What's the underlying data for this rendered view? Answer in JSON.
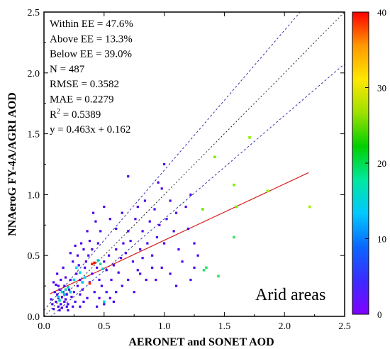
{
  "chart_data": {
    "type": "scatter",
    "title": "",
    "xlabel": "AERONET and SONET AOD",
    "ylabel": "NNAeroG FY-4A/AGRI AOD",
    "xlim": [
      0.0,
      2.5
    ],
    "ylim": [
      0.0,
      2.5
    ],
    "xticks": [
      "0.0",
      "0.5",
      "1.0",
      "1.5",
      "2.0",
      "2.5"
    ],
    "yticks": [
      "0.0",
      "0.5",
      "1.0",
      "1.5",
      "2.0",
      "2.5"
    ],
    "grid": false,
    "region_label": "Arid areas",
    "stats": {
      "within_ee": "Within EE = 47.6%",
      "above_ee": "Above EE = 13.3%",
      "below_ee": "Below EE = 39.0%",
      "n": "N = 487",
      "rmse": "RMSE = 0.3582",
      "mae": "MAE = 0.2279",
      "r2_prefix": "R",
      "r2_sup": "2",
      "r2_value": " = 0.5389",
      "equation": "y = 0.463x + 0.162"
    },
    "regression": {
      "slope": 0.463,
      "intercept": 0.162,
      "x_range": [
        0.05,
        2.2
      ],
      "color": "#d42020"
    },
    "one_to_one_line": {
      "slope": 1.0,
      "intercept": 0.0
    },
    "ee_envelope": {
      "upper": {
        "slope": 1.15,
        "intercept": 0.05
      },
      "lower": {
        "slope": 0.85,
        "intercept": -0.05
      },
      "color": "#3333aa"
    },
    "colorbar": {
      "min": 0,
      "max": 40,
      "ticks": [
        "0",
        "10",
        "20",
        "30",
        "40"
      ],
      "colors": [
        "#8000ff",
        "#3b2bff",
        "#0a66ff",
        "#00c8ff",
        "#00e8a0",
        "#00d000",
        "#9ee000",
        "#ffe800",
        "#ff9800",
        "#ff0000"
      ]
    },
    "points": [
      [
        0.08,
        0.06
      ],
      [
        0.1,
        0.12
      ],
      [
        0.12,
        0.15
      ],
      [
        0.14,
        0.1
      ],
      [
        0.09,
        0.2
      ],
      [
        0.11,
        0.18
      ],
      [
        0.13,
        0.22
      ],
      [
        0.15,
        0.16
      ],
      [
        0.16,
        0.2
      ],
      [
        0.18,
        0.14
      ],
      [
        0.07,
        0.1
      ],
      [
        0.12,
        0.08
      ],
      [
        0.17,
        0.25
      ],
      [
        0.19,
        0.18
      ],
      [
        0.2,
        0.1
      ],
      [
        0.1,
        0.26
      ],
      [
        0.14,
        0.3
      ],
      [
        0.06,
        0.14
      ],
      [
        0.21,
        0.22
      ],
      [
        0.23,
        0.16
      ],
      [
        0.13,
        0.05
      ],
      [
        0.08,
        0.28
      ],
      [
        0.25,
        0.2
      ],
      [
        0.22,
        0.3
      ],
      [
        0.18,
        0.32
      ],
      [
        0.26,
        0.12
      ],
      [
        0.28,
        0.25
      ],
      [
        0.3,
        0.18
      ],
      [
        0.11,
        0.35
      ],
      [
        0.16,
        0.4
      ],
      [
        0.2,
        0.05
      ],
      [
        0.24,
        0.08
      ],
      [
        0.27,
        0.35
      ],
      [
        0.3,
        0.3
      ],
      [
        0.32,
        0.22
      ],
      [
        0.34,
        0.4
      ],
      [
        0.36,
        0.15
      ],
      [
        0.38,
        0.28
      ],
      [
        0.4,
        0.35
      ],
      [
        0.42,
        0.2
      ],
      [
        0.35,
        0.45
      ],
      [
        0.37,
        0.5
      ],
      [
        0.33,
        0.55
      ],
      [
        0.31,
        0.6
      ],
      [
        0.28,
        0.5
      ],
      [
        0.26,
        0.58
      ],
      [
        0.24,
        0.45
      ],
      [
        0.22,
        0.52
      ],
      [
        0.44,
        0.4
      ],
      [
        0.46,
        0.3
      ],
      [
        0.48,
        0.25
      ],
      [
        0.5,
        0.45
      ],
      [
        0.52,
        0.38
      ],
      [
        0.54,
        0.5
      ],
      [
        0.56,
        0.3
      ],
      [
        0.58,
        0.42
      ],
      [
        0.6,
        0.55
      ],
      [
        0.62,
        0.36
      ],
      [
        0.64,
        0.48
      ],
      [
        0.66,
        0.6
      ],
      [
        0.45,
        0.6
      ],
      [
        0.47,
        0.7
      ],
      [
        0.43,
        0.78
      ],
      [
        0.41,
        0.85
      ],
      [
        0.5,
        0.9
      ],
      [
        0.55,
        0.8
      ],
      [
        0.6,
        0.72
      ],
      [
        0.65,
        0.85
      ],
      [
        0.7,
        0.7
      ],
      [
        0.68,
        0.52
      ],
      [
        0.72,
        0.62
      ],
      [
        0.74,
        0.45
      ],
      [
        0.76,
        0.8
      ],
      [
        0.78,
        0.9
      ],
      [
        0.8,
        0.55
      ],
      [
        0.82,
        0.7
      ],
      [
        0.84,
        0.95
      ],
      [
        0.86,
        0.6
      ],
      [
        0.88,
        0.78
      ],
      [
        0.9,
        0.5
      ],
      [
        0.92,
        0.88
      ],
      [
        0.94,
        0.65
      ],
      [
        0.96,
        0.75
      ],
      [
        0.98,
        1.05
      ],
      [
        1.0,
        0.6
      ],
      [
        1.02,
        0.8
      ],
      [
        1.05,
        0.95
      ],
      [
        1.08,
        0.7
      ],
      [
        1.1,
        0.85
      ],
      [
        1.12,
        0.55
      ],
      [
        1.15,
        0.45
      ],
      [
        1.18,
        0.9
      ],
      [
        1.2,
        0.72
      ],
      [
        1.22,
        1.0
      ],
      [
        1.25,
        0.6
      ],
      [
        1.0,
        1.25
      ],
      [
        0.95,
        1.1
      ],
      [
        0.7,
        1.15
      ],
      [
        1.05,
        0.35
      ],
      [
        1.1,
        0.25
      ],
      [
        0.7,
        0.3
      ],
      [
        0.75,
        0.2
      ],
      [
        0.8,
        0.35
      ],
      [
        0.85,
        0.3
      ],
      [
        0.9,
        0.4
      ],
      [
        0.65,
        0.25
      ],
      [
        0.6,
        0.2
      ],
      [
        0.55,
        0.15
      ],
      [
        0.5,
        0.1
      ],
      [
        0.58,
        0.12
      ],
      [
        1.22,
        0.3
      ],
      [
        1.25,
        0.4
      ],
      [
        1.28,
        0.5
      ],
      [
        0.98,
        0.4
      ],
      [
        0.93,
        0.3
      ],
      [
        0.78,
        0.38
      ],
      [
        0.82,
        0.48
      ],
      [
        0.4,
        0.55
      ],
      [
        0.38,
        0.62
      ],
      [
        0.36,
        0.7
      ],
      [
        0.44,
        0.08
      ],
      [
        0.46,
        0.15
      ],
      [
        0.52,
        0.2
      ],
      [
        0.3,
        0.08
      ],
      [
        0.33,
        0.12
      ],
      [
        0.29,
        0.42
      ],
      [
        0.17,
        0.12
      ],
      [
        0.19,
        0.08
      ],
      [
        0.15,
        0.07
      ],
      [
        0.12,
        0.25
      ]
    ],
    "highlight_points": [
      {
        "x": 1.42,
        "y": 1.31,
        "color": "#7cf000"
      },
      {
        "x": 1.71,
        "y": 1.47,
        "color": "#8ef000"
      },
      {
        "x": 1.58,
        "y": 1.08,
        "color": "#80f000"
      },
      {
        "x": 1.86,
        "y": 1.03,
        "color": "#9ef000"
      },
      {
        "x": 2.21,
        "y": 0.9,
        "color": "#9ef000"
      },
      {
        "x": 1.32,
        "y": 0.88,
        "color": "#66f000"
      },
      {
        "x": 1.6,
        "y": 0.9,
        "color": "#70f000"
      },
      {
        "x": 1.58,
        "y": 0.65,
        "color": "#3fe060"
      },
      {
        "x": 1.35,
        "y": 0.4,
        "color": "#33e070"
      },
      {
        "x": 1.33,
        "y": 0.38,
        "color": "#30e070"
      },
      {
        "x": 1.45,
        "y": 0.33,
        "color": "#40e060"
      },
      {
        "x": 0.47,
        "y": 0.43,
        "color": "#20d0a0"
      },
      {
        "x": 0.45,
        "y": 0.46,
        "color": "#10c0c0"
      },
      {
        "x": 0.49,
        "y": 0.39,
        "color": "#00d0d0"
      },
      {
        "x": 0.4,
        "y": 0.43,
        "color": "#ff2000"
      },
      {
        "x": 0.42,
        "y": 0.44,
        "color": "#ff1000"
      },
      {
        "x": 0.38,
        "y": 0.27,
        "color": "#ff3000"
      },
      {
        "x": 0.15,
        "y": 0.2,
        "color": "#00c8e0"
      },
      {
        "x": 0.17,
        "y": 0.18,
        "color": "#00c0e0"
      },
      {
        "x": 0.13,
        "y": 0.13,
        "color": "#10d0c0"
      },
      {
        "x": 0.18,
        "y": 0.22,
        "color": "#20d0a0"
      },
      {
        "x": 0.2,
        "y": 0.24,
        "color": "#00d0d0"
      },
      {
        "x": 0.12,
        "y": 0.16,
        "color": "#10b8e8"
      },
      {
        "x": 0.22,
        "y": 0.2,
        "color": "#00c0f0"
      },
      {
        "x": 0.3,
        "y": 0.36,
        "color": "#00d8f0"
      },
      {
        "x": 0.25,
        "y": 0.3,
        "color": "#00d0f0"
      },
      {
        "x": 0.27,
        "y": 0.4,
        "color": "#00e0f0"
      },
      {
        "x": 0.5,
        "y": 0.12,
        "color": "#00d0f0"
      },
      {
        "x": 0.32,
        "y": 0.28,
        "color": "#00c8f0"
      },
      {
        "x": 0.34,
        "y": 0.32,
        "color": "#00d8f0"
      }
    ]
  }
}
